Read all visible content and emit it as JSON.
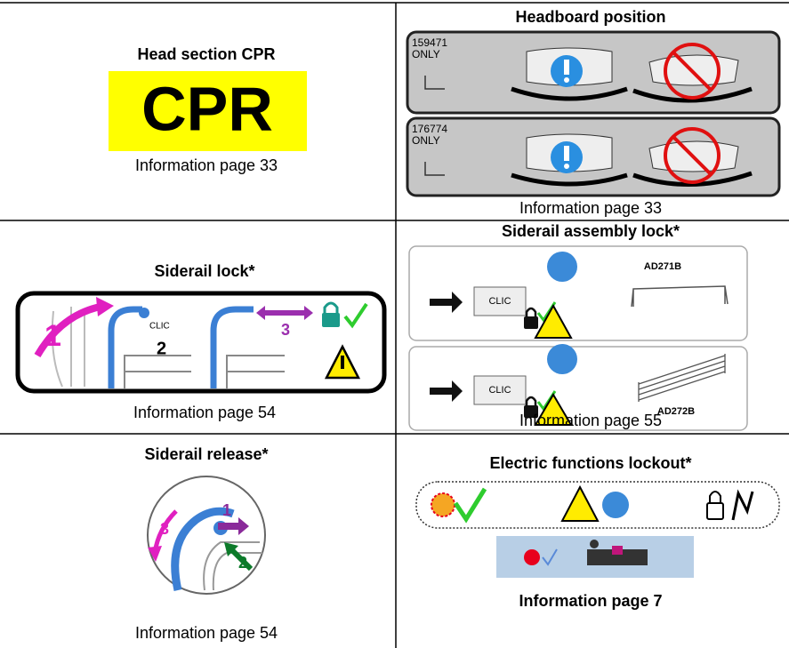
{
  "cells": [
    {
      "title": "Head section CPR",
      "sign": "CPR",
      "info": "Information page 33"
    },
    {
      "title": "Headboard position",
      "labels": [
        {
          "code": "159471",
          "note": "ONLY"
        },
        {
          "code": "176774",
          "note": "ONLY"
        }
      ],
      "info": "Information page 33"
    },
    {
      "title": "Siderail lock*",
      "steps": [
        "1",
        "2",
        "3"
      ],
      "click": "CLIC",
      "info": "Information page 54"
    },
    {
      "title": "Siderail assembly lock*",
      "panels": [
        {
          "click": "CLIC",
          "model": "AD271B"
        },
        {
          "click": "CLIC",
          "model": "AD272B"
        }
      ],
      "info": "Information page 55"
    },
    {
      "title": "Siderail release*",
      "steps": [
        "1",
        "2",
        "3"
      ],
      "info": "Information page 54"
    },
    {
      "title": "Electric functions lockout*",
      "info": "Information page 7"
    }
  ]
}
